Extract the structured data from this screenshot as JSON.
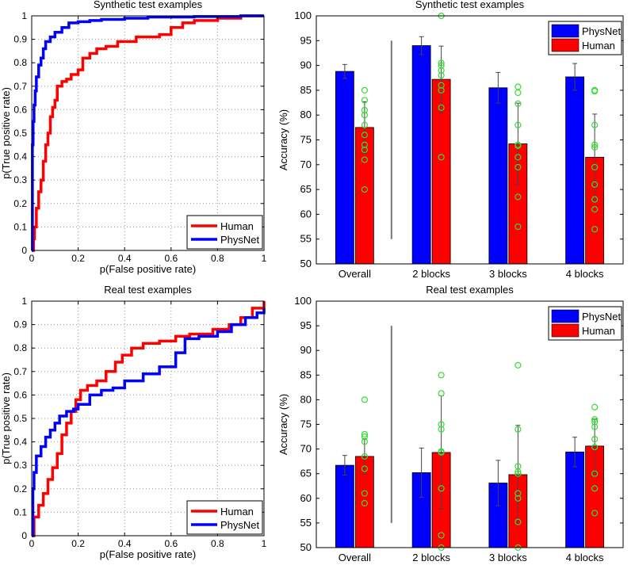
{
  "chart_data": [
    {
      "id": "roc_synth",
      "type": "line",
      "title": "Synthetic test examples",
      "xlabel": "p(False positive rate)",
      "ylabel": "p(True positive rate)",
      "xlim": [
        0,
        1
      ],
      "ylim": [
        0,
        1
      ],
      "xticks": [
        0,
        0.2,
        0.4,
        0.6,
        0.8,
        1
      ],
      "xtick_labels": [
        "0",
        "0.2",
        "0.4",
        "0.6",
        "0.8",
        "1"
      ],
      "yticks": [
        0,
        0.1,
        0.2,
        0.3,
        0.4,
        0.5,
        0.6,
        0.7,
        0.8,
        0.9,
        1
      ],
      "ytick_labels": [
        "0",
        "0.1",
        "0.2",
        "0.3",
        "0.4",
        "0.5",
        "0.6",
        "0.7",
        "0.8",
        "0.9",
        "1"
      ],
      "grid": true,
      "legend": "bottom-right",
      "series": [
        {
          "name": "Human",
          "color": "#ff0000",
          "x": [
            0,
            0.008,
            0.012,
            0.02,
            0.03,
            0.04,
            0.05,
            0.06,
            0.07,
            0.08,
            0.09,
            0.1,
            0.11,
            0.13,
            0.15,
            0.17,
            0.2,
            0.22,
            0.25,
            0.28,
            0.32,
            0.37,
            0.45,
            0.55,
            0.6,
            0.65,
            0.7,
            0.8,
            0.9,
            1
          ],
          "y": [
            0,
            0.05,
            0.1,
            0.18,
            0.25,
            0.3,
            0.38,
            0.45,
            0.5,
            0.57,
            0.61,
            0.64,
            0.7,
            0.72,
            0.73,
            0.75,
            0.77,
            0.82,
            0.84,
            0.86,
            0.87,
            0.89,
            0.91,
            0.92,
            0.95,
            0.97,
            0.98,
            0.99,
            1,
            1
          ]
        },
        {
          "name": "PhysNet",
          "color": "#0000ff",
          "x": [
            0,
            0.003,
            0.006,
            0.01,
            0.015,
            0.02,
            0.03,
            0.04,
            0.05,
            0.06,
            0.08,
            0.1,
            0.13,
            0.16,
            0.2,
            0.25,
            0.3,
            0.4,
            0.5,
            0.7,
            0.9,
            1
          ],
          "y": [
            0,
            0.45,
            0.55,
            0.62,
            0.68,
            0.74,
            0.79,
            0.82,
            0.86,
            0.89,
            0.91,
            0.93,
            0.95,
            0.97,
            0.975,
            0.98,
            0.985,
            0.99,
            0.995,
            0.997,
            1,
            1
          ]
        }
      ]
    },
    {
      "id": "bar_synth",
      "type": "bar",
      "title": "Synthetic test examples",
      "xlabel": "",
      "ylabel": "Accuracy (%)",
      "ylim": [
        50,
        100
      ],
      "yticks": [
        50,
        55,
        60,
        65,
        70,
        75,
        80,
        85,
        90,
        95,
        100
      ],
      "ytick_labels": [
        "50",
        "55",
        "60",
        "65",
        "70",
        "75",
        "80",
        "85",
        "90",
        "95",
        "100"
      ],
      "categories": [
        "Overall",
        "2 blocks",
        "3 blocks",
        "4 blocks"
      ],
      "legend": "top-right",
      "series": [
        {
          "name": "PhysNet",
          "color": "#0000ff",
          "values": [
            88.8,
            94.0,
            85.5,
            87.7
          ],
          "err": [
            1.4,
            1.8,
            3.1,
            2.7
          ]
        },
        {
          "name": "Human",
          "color": "#ff0000",
          "values": [
            77.5,
            87.2,
            74.2,
            71.5
          ],
          "err": [
            5.2,
            6.7,
            8.2,
            8.7
          ],
          "individual": [
            [
              85,
              83,
              81,
              80,
              78,
              76,
              74,
              73,
              71,
              65
            ],
            [
              100,
              90.5,
              90,
              89,
              88,
              86,
              85,
              81.5,
              71.5
            ],
            [
              85.7,
              84.5,
              82.3,
              78,
              74,
              73.8,
              71.5,
              69.5,
              63.5,
              57.5
            ],
            [
              85,
              84.8,
              78,
              74,
              73.5,
              69.5,
              66,
              63,
              61,
              57
            ]
          ]
        }
      ]
    },
    {
      "id": "roc_real",
      "type": "line",
      "title": "Real test examples",
      "xlabel": "p(False positive rate)",
      "ylabel": "p(True positive rate)",
      "xlim": [
        0,
        1
      ],
      "ylim": [
        0,
        1
      ],
      "xticks": [
        0,
        0.2,
        0.4,
        0.6,
        0.8,
        1
      ],
      "xtick_labels": [
        "0",
        "0.2",
        "0.4",
        "0.6",
        "0.8",
        "1"
      ],
      "yticks": [
        0,
        0.1,
        0.2,
        0.3,
        0.4,
        0.5,
        0.6,
        0.7,
        0.8,
        0.9,
        1
      ],
      "ytick_labels": [
        "0",
        "0.1",
        "0.2",
        "0.3",
        "0.4",
        "0.5",
        "0.6",
        "0.7",
        "0.8",
        "0.9",
        "1"
      ],
      "grid": true,
      "legend": "bottom-right",
      "series": [
        {
          "name": "Human",
          "color": "#ff0000",
          "x": [
            0,
            0.01,
            0.03,
            0.05,
            0.07,
            0.09,
            0.11,
            0.13,
            0.15,
            0.17,
            0.19,
            0.21,
            0.24,
            0.28,
            0.32,
            0.36,
            0.39,
            0.43,
            0.48,
            0.55,
            0.62,
            0.68,
            0.72,
            0.78,
            0.85,
            0.9,
            0.95,
            1
          ],
          "y": [
            0,
            0.08,
            0.13,
            0.18,
            0.24,
            0.29,
            0.35,
            0.43,
            0.48,
            0.53,
            0.58,
            0.62,
            0.64,
            0.66,
            0.7,
            0.74,
            0.77,
            0.8,
            0.82,
            0.83,
            0.85,
            0.86,
            0.86,
            0.88,
            0.9,
            0.93,
            0.97,
            1
          ]
        },
        {
          "name": "PhysNet",
          "color": "#0000ff",
          "x": [
            0,
            0.005,
            0.01,
            0.02,
            0.04,
            0.06,
            0.08,
            0.1,
            0.12,
            0.15,
            0.18,
            0.2,
            0.25,
            0.3,
            0.35,
            0.4,
            0.48,
            0.55,
            0.62,
            0.66,
            0.72,
            0.8,
            0.86,
            0.92,
            0.97,
            1
          ],
          "y": [
            0,
            0.2,
            0.27,
            0.34,
            0.38,
            0.42,
            0.45,
            0.48,
            0.51,
            0.53,
            0.54,
            0.56,
            0.6,
            0.62,
            0.63,
            0.66,
            0.69,
            0.72,
            0.78,
            0.84,
            0.85,
            0.87,
            0.9,
            0.93,
            0.95,
            0.97
          ]
        }
      ]
    },
    {
      "id": "bar_real",
      "type": "bar",
      "title": "Real test examples",
      "xlabel": "",
      "ylabel": "Accuracy (%)",
      "ylim": [
        50,
        100
      ],
      "yticks": [
        50,
        55,
        60,
        65,
        70,
        75,
        80,
        85,
        90,
        95,
        100
      ],
      "ytick_labels": [
        "50",
        "55",
        "60",
        "65",
        "70",
        "75",
        "80",
        "85",
        "90",
        "95",
        "100"
      ],
      "categories": [
        "Overall",
        "2 blocks",
        "3 blocks",
        "4 blocks"
      ],
      "legend": "top-right",
      "series": [
        {
          "name": "PhysNet",
          "color": "#0000ff",
          "values": [
            66.7,
            65.2,
            63.1,
            69.4
          ],
          "err": [
            2.0,
            5.0,
            4.6,
            3.0
          ]
        },
        {
          "name": "Human",
          "color": "#ff0000",
          "values": [
            68.5,
            69.3,
            64.8,
            70.6
          ],
          "err": [
            3.6,
            11.5,
            10.0,
            5.5
          ],
          "individual": [
            [
              80,
              73,
              72.5,
              71.5,
              68.5,
              66,
              61,
              59
            ],
            [
              85,
              81.3,
              75,
              74,
              69.5,
              69.3,
              62,
              52.5,
              50
            ],
            [
              87,
              74,
              66.5,
              65.4,
              65,
              61,
              60,
              55.2,
              50
            ],
            [
              78.5,
              76,
              75.5,
              74.5,
              72,
              70.4,
              65,
              62,
              57
            ]
          ]
        }
      ]
    }
  ]
}
